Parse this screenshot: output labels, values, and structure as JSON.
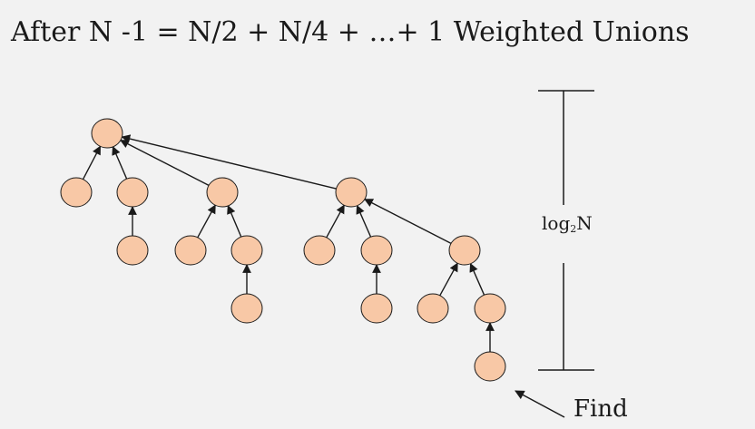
{
  "title": "After N -1 = N/2 + N/4 + …+ 1 Weighted Unions",
  "height_label": {
    "base": "log",
    "subscript": "2",
    "suffix": "N"
  },
  "find_label": "Find",
  "colors": {
    "node_fill": "#f8c8a6",
    "node_stroke": "#1a1a1a",
    "edge": "#1a1a1a",
    "background": "#f2f2f2"
  }
}
